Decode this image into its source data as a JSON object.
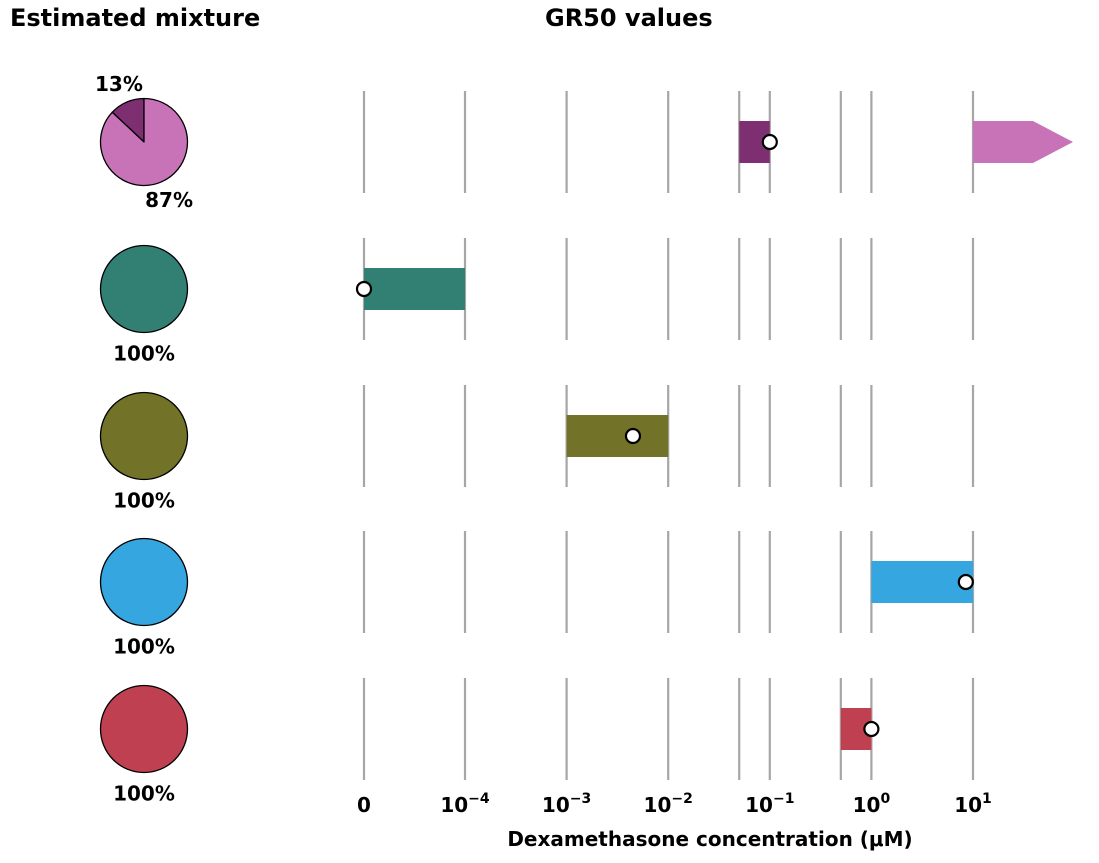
{
  "titles": {
    "left": "Estimated mixture",
    "right": "GR50 values"
  },
  "chart_data": [
    {
      "type": "pie",
      "title": "Estimated mixture",
      "rows": [
        {
          "slices": [
            {
              "value": 87,
              "label": "87%",
              "color": "#c873b8"
            },
            {
              "value": 13,
              "label": "13%",
              "color": "#7e2f71"
            }
          ]
        },
        {
          "slices": [
            {
              "value": 100,
              "label": "100%",
              "color": "#318073"
            }
          ]
        },
        {
          "slices": [
            {
              "value": 100,
              "label": "100%",
              "color": "#727328"
            }
          ]
        },
        {
          "slices": [
            {
              "value": 100,
              "label": "100%",
              "color": "#36a6e0"
            }
          ]
        },
        {
          "slices": [
            {
              "value": 100,
              "label": "100%",
              "color": "#bf4050"
            }
          ]
        }
      ]
    },
    {
      "type": "bar",
      "title": "GR50 values",
      "xlabel": "Dexamethasone concentration (μM)",
      "x_scale": "log (first tick is 0)",
      "ticks": [
        {
          "base": "0",
          "exp": ""
        },
        {
          "base": "10",
          "exp": "−4"
        },
        {
          "base": "10",
          "exp": "−3"
        },
        {
          "base": "10",
          "exp": "−2"
        },
        {
          "base": "10",
          "exp": "−1"
        },
        {
          "base": "10",
          "exp": "0"
        },
        {
          "base": "10",
          "exp": "1"
        }
      ],
      "gridlines": [
        0,
        0.0001,
        0.001,
        0.01,
        0.05,
        0.1,
        0.5,
        1,
        10
      ],
      "grid": true,
      "rows": [
        {
          "ranges": [
            {
              "low": 0.05,
              "high": 0.1,
              "color": "#7e2f71",
              "gr50": 0.1
            },
            {
              "low": 10,
              "high": "beyond 10",
              "color": "#c873b8",
              "arrow": true
            }
          ]
        },
        {
          "ranges": [
            {
              "low": 0,
              "high": 0.0001,
              "color": "#318073",
              "gr50": 0
            }
          ]
        },
        {
          "ranges": [
            {
              "low": 0.001,
              "high": 0.01,
              "color": "#727328",
              "gr50": 0.0045
            }
          ]
        },
        {
          "ranges": [
            {
              "low": 1,
              "high": 10,
              "color": "#36a6e0",
              "gr50": 8.5
            }
          ]
        },
        {
          "ranges": [
            {
              "low": 0.5,
              "high": 1,
              "color": "#bf4050",
              "gr50": 1
            }
          ]
        }
      ]
    }
  ]
}
